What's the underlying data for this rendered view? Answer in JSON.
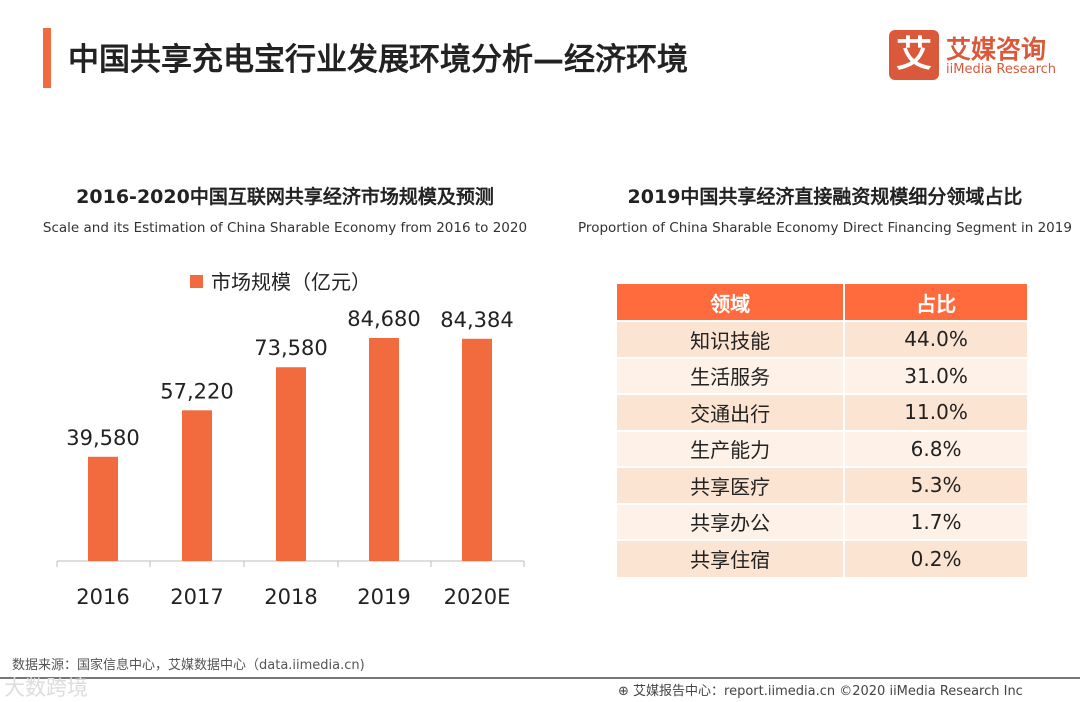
{
  "header": {
    "title": "中国共享充电宝行业发展环境分析—经济环境",
    "logo_mark": "艾",
    "logo_cn": "艾媒咨询",
    "logo_en": "iiMedia Research"
  },
  "colors": {
    "accent": "#F26B3F",
    "table_header": "#FF6B3D",
    "row_odd": "#FCE4D3",
    "row_even": "#FEF1E7"
  },
  "chart_data": {
    "type": "bar",
    "title": "2016-2020中国互联网共享经济市场规模及预测",
    "subtitle": "Scale and its Estimation of China Sharable Economy from 2016 to 2020",
    "legend": "市场规模（亿元）",
    "categories": [
      "2016",
      "2017",
      "2018",
      "2019",
      "2020E"
    ],
    "values": [
      39580,
      57220,
      73580,
      84680,
      84384
    ],
    "value_labels": [
      "39,580",
      "57,220",
      "73,580",
      "84,680",
      "84,384"
    ],
    "ylim": [
      0,
      84680
    ]
  },
  "table": {
    "title": "2019中国共享经济直接融资规模细分领域占比",
    "subtitle": "Proportion of China Sharable Economy Direct Financing Segment in 2019",
    "headers": [
      "领域",
      "占比"
    ],
    "rows": [
      [
        "知识技能",
        "44.0%"
      ],
      [
        "生活服务",
        "31.0%"
      ],
      [
        "交通出行",
        "11.0%"
      ],
      [
        "生产能力",
        "6.8%"
      ],
      [
        "共享医疗",
        "5.3%"
      ],
      [
        "共享办公",
        "1.7%"
      ],
      [
        "共享住宿",
        "0.2%"
      ]
    ]
  },
  "footer": {
    "source": "数据来源：国家信息中心，艾媒数据中心（data.iimedia.cn)",
    "watermark": "大数跨境",
    "report": "艾媒报告中心：report.iimedia.cn  ©2020  iiMedia Research  Inc"
  }
}
